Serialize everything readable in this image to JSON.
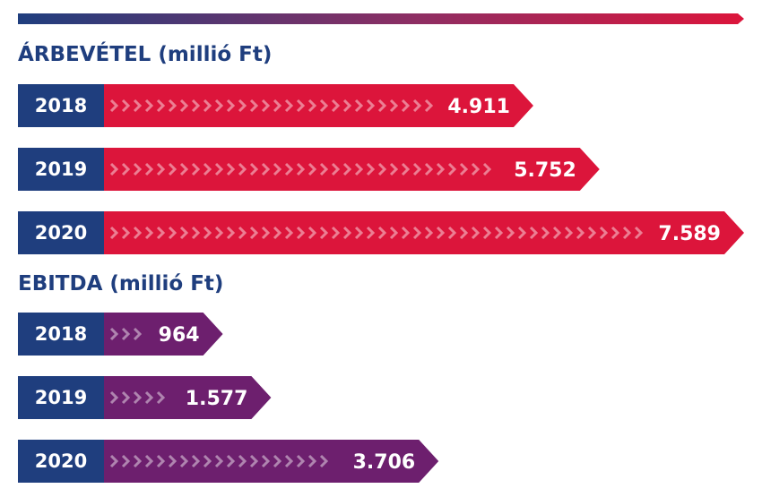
{
  "chart_data": [
    {
      "type": "bar",
      "title": "ÁRBEVÉTEL (millió Ft)",
      "categories": [
        "2018",
        "2019",
        "2020"
      ],
      "values": [
        4911,
        5752,
        7589
      ],
      "value_labels": [
        "4.911",
        "5.752",
        "7.589"
      ],
      "orientation": "horizontal",
      "color": "#dc153b",
      "category_color": "#1f3e7e"
    },
    {
      "type": "bar",
      "title": "EBITDA (millió Ft)",
      "categories": [
        "2018",
        "2019",
        "2020"
      ],
      "values": [
        964,
        1577,
        3706
      ],
      "value_labels": [
        "964",
        "1.577",
        "3.706"
      ],
      "orientation": "horizontal",
      "color": "#6d1f6e",
      "category_color": "#1f3e7e"
    }
  ]
}
